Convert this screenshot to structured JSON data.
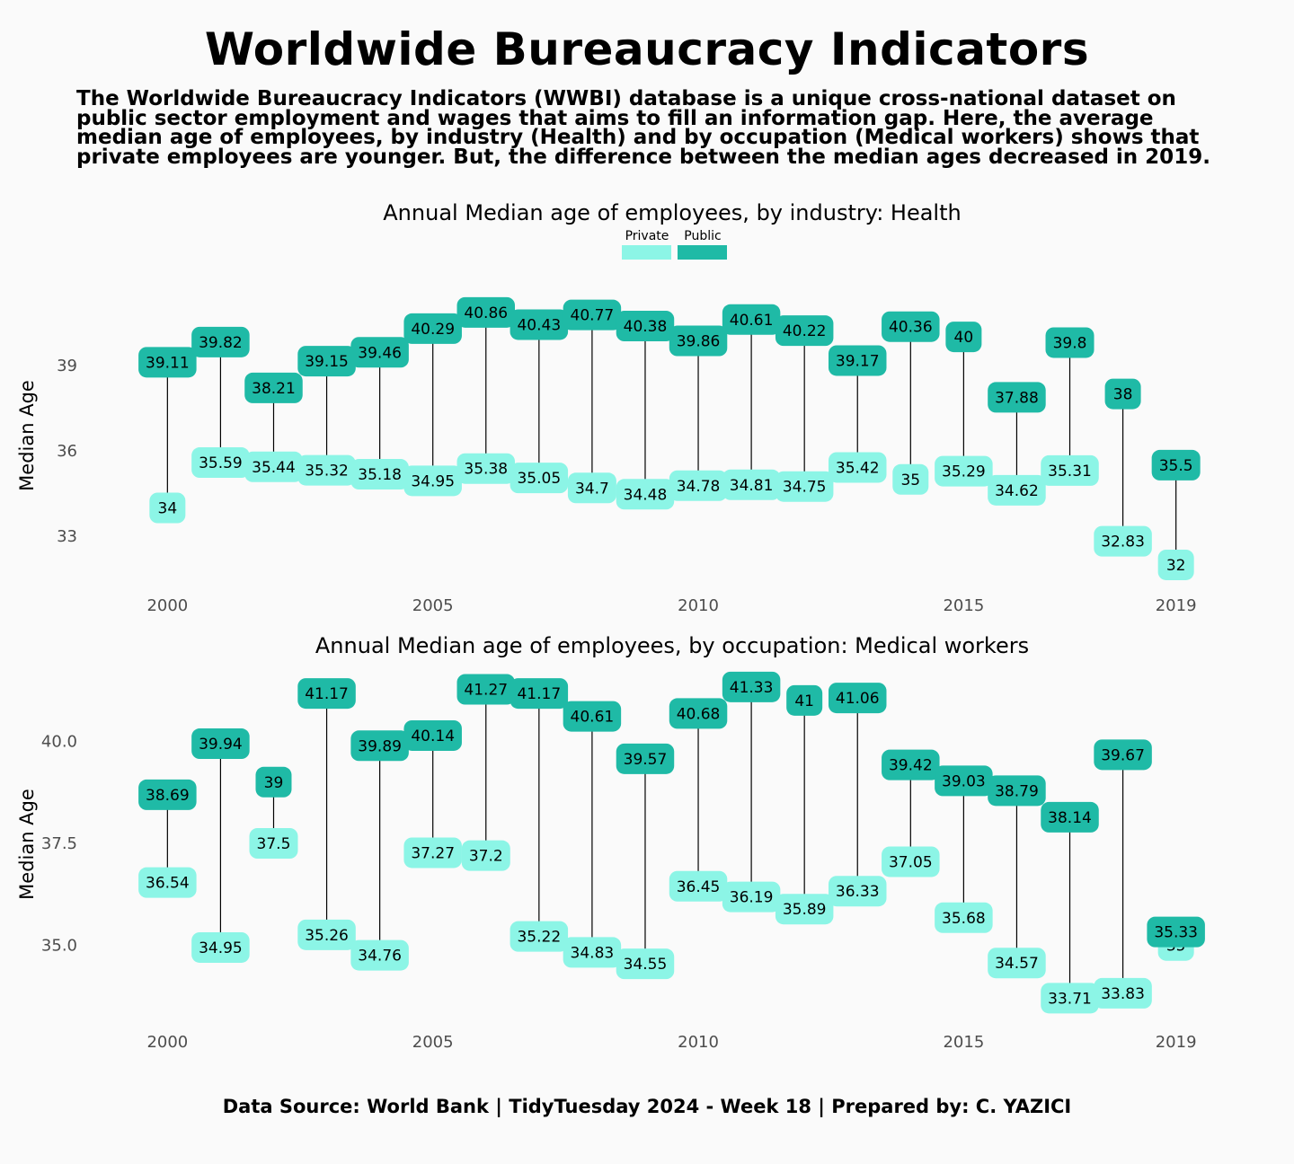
{
  "title": "Worldwide Bureaucracy Indicators",
  "subtitle": "The Worldwide Bureaucracy Indicators (WWBI) database is a unique cross-national dataset on public sector employment and wages that aims to fill an information gap. Here, the average median age of employees, by industry (Health) and by occupation (Medical workers) shows that private employees are younger. But, the difference between the median ages decreased in 2019.",
  "footer": "Data Source: World Bank | TidyTuesday 2024 - Week 18 | Prepared by: C. YAZICI",
  "colors": {
    "private": "#8cf5e6",
    "public": "#1fbaa6",
    "background": "#fafafa"
  },
  "legend": {
    "private": "Private",
    "public": "Public"
  },
  "chart_data": [
    {
      "type": "dumbbell",
      "title": "Annual Median age of employees, by industry: Health",
      "xlabel": "",
      "ylabel": "Median Age",
      "x": [
        2000,
        2001,
        2002,
        2003,
        2004,
        2005,
        2006,
        2007,
        2008,
        2009,
        2010,
        2011,
        2012,
        2013,
        2014,
        2015,
        2016,
        2017,
        2018,
        2019
      ],
      "series": [
        {
          "name": "Private",
          "values": [
            34,
            35.59,
            35.44,
            35.32,
            35.18,
            34.95,
            35.38,
            35.05,
            34.7,
            34.48,
            34.78,
            34.81,
            34.75,
            35.42,
            35,
            35.29,
            34.62,
            35.31,
            32.83,
            32
          ]
        },
        {
          "name": "Public",
          "values": [
            39.11,
            39.82,
            38.21,
            39.15,
            39.46,
            40.29,
            40.86,
            40.43,
            40.77,
            40.38,
            39.86,
            40.61,
            40.22,
            39.17,
            40.36,
            40,
            37.88,
            39.8,
            38,
            35.5
          ]
        }
      ],
      "labels": {
        "private": [
          "34",
          "35.59",
          "35.44",
          "35.32",
          "35.18",
          "34.95",
          "35.38",
          "35.05",
          "34.7",
          "34.48",
          "34.78",
          "34.81",
          "34.75",
          "35.42",
          "35",
          "35.29",
          "34.62",
          "35.31",
          "32.83",
          "32"
        ],
        "public": [
          "39.11",
          "39.82",
          "38.21",
          "39.15",
          "39.46",
          "40.29",
          "40.86",
          "40.43",
          "40.77",
          "40.38",
          "39.86",
          "40.61",
          "40.22",
          "39.17",
          "40.36",
          "40",
          "37.88",
          "39.8",
          "38",
          "35.5"
        ]
      },
      "xticks": [
        2000,
        2005,
        2010,
        2015,
        2019
      ],
      "yticks": [
        33,
        36,
        39
      ],
      "ytick_labels": [
        "33",
        "36",
        "39"
      ],
      "ylim": [
        31.4,
        41.8
      ],
      "xlim": [
        1999.3,
        2019.7
      ],
      "grid": false,
      "legend": "top-center"
    },
    {
      "type": "dumbbell",
      "title": "Annual Median age of employees, by occupation: Medical workers",
      "xlabel": "",
      "ylabel": "Median Age",
      "x": [
        2000,
        2001,
        2002,
        2003,
        2004,
        2005,
        2006,
        2007,
        2008,
        2009,
        2010,
        2011,
        2012,
        2013,
        2014,
        2015,
        2016,
        2017,
        2018,
        2019
      ],
      "series": [
        {
          "name": "Private",
          "values": [
            36.54,
            34.95,
            37.5,
            35.26,
            34.76,
            37.27,
            37.2,
            35.22,
            34.83,
            34.55,
            36.45,
            36.19,
            35.89,
            36.33,
            37.05,
            35.68,
            34.57,
            33.71,
            33.83,
            35
          ]
        },
        {
          "name": "Public",
          "values": [
            38.69,
            39.94,
            39,
            41.17,
            39.89,
            40.14,
            41.27,
            41.17,
            40.61,
            39.57,
            40.68,
            41.33,
            41,
            41.06,
            39.42,
            39.03,
            38.79,
            38.14,
            39.67,
            35.33
          ]
        }
      ],
      "labels": {
        "private": [
          "36.54",
          "34.95",
          "37.5",
          "35.26",
          "34.76",
          "37.27",
          "37.2",
          "35.22",
          "34.83",
          "34.55",
          "36.45",
          "36.19",
          "35.89",
          "36.33",
          "37.05",
          "35.68",
          "34.57",
          "33.71",
          "33.83",
          "35"
        ],
        "public": [
          "38.69",
          "39.94",
          "39",
          "41.17",
          "39.89",
          "40.14",
          "41.27",
          "41.17",
          "40.61",
          "39.57",
          "40.68",
          "41.33",
          "41",
          "41.06",
          "39.42",
          "39.03",
          "38.79",
          "38.14",
          "39.67",
          "35.33"
        ]
      },
      "xticks": [
        2000,
        2005,
        2010,
        2015,
        2019
      ],
      "yticks": [
        35,
        37.5,
        40
      ],
      "ytick_labels": [
        "35.0",
        "37.5",
        "40.0"
      ],
      "ylim": [
        33.3,
        41.7
      ],
      "xlim": [
        1999.3,
        2019.7
      ],
      "grid": false,
      "legend": "none"
    }
  ]
}
